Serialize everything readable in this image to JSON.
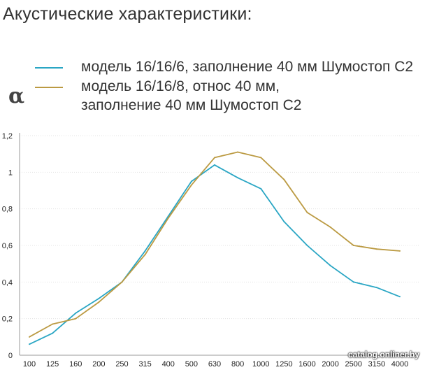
{
  "page_title": "Акустические характеристики:",
  "y_symbol": "α",
  "watermark": "catalog.onliner.by",
  "chart_data": {
    "type": "line",
    "title": "",
    "xlabel": "",
    "ylabel": "α",
    "categories": [
      "100",
      "125",
      "160",
      "200",
      "250",
      "315",
      "400",
      "500",
      "630",
      "800",
      "1000",
      "1250",
      "1600",
      "2000",
      "2500",
      "3150",
      "4000"
    ],
    "ylim": [
      0,
      1.2
    ],
    "yticks": [
      "0",
      "0,2",
      "0,4",
      "0,6",
      "0,8",
      "1",
      "1,2"
    ],
    "grid": true,
    "legend_placement": "top-left",
    "series": [
      {
        "name": "модель 16/16/6, заполнение 40 мм Шумостоп С2",
        "name_lines": [
          "модель 16/16/6, заполнение 40 мм Шумостоп С2"
        ],
        "color": "#2aa6c4",
        "values": [
          0.06,
          0.12,
          0.23,
          0.31,
          0.4,
          0.57,
          0.76,
          0.95,
          1.04,
          0.97,
          0.91,
          0.73,
          0.6,
          0.49,
          0.4,
          0.37,
          0.32
        ]
      },
      {
        "name": "модель 16/16/8, относ 40 мм, заполнение 40 мм Шумостоп С2",
        "name_lines": [
          "модель 16/16/8, относ 40 мм,",
          "заполнение 40 мм Шумостоп С2"
        ],
        "color": "#bb9a42",
        "values": [
          0.1,
          0.17,
          0.2,
          0.29,
          0.4,
          0.55,
          0.75,
          0.93,
          1.08,
          1.11,
          1.08,
          0.96,
          0.78,
          0.7,
          0.6,
          0.58,
          0.57
        ]
      }
    ]
  }
}
